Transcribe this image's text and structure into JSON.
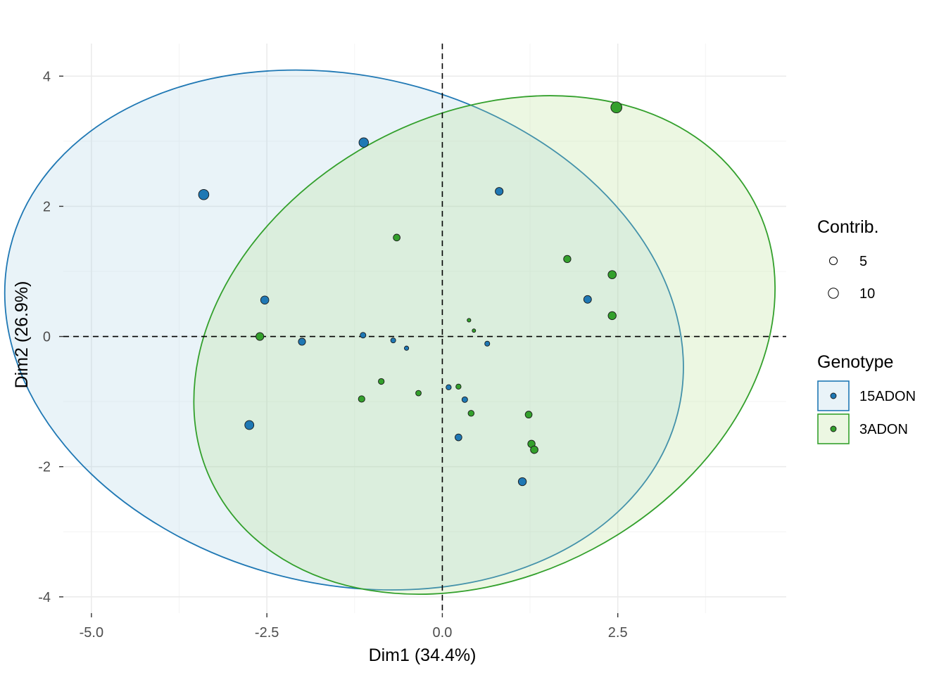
{
  "chart_data": {
    "type": "scatter",
    "xlabel": "Dim1 (34.4%)",
    "ylabel": "Dim2 (26.9%)",
    "xlim": [
      -5.4,
      4.9
    ],
    "ylim": [
      -4.25,
      4.5
    ],
    "xticks": [
      -5.0,
      -2.5,
      0.0,
      2.5
    ],
    "xtick_labels": [
      "-5.0",
      "-2.5",
      "0.0",
      "2.5"
    ],
    "yticks": [
      -4,
      -2,
      0,
      2,
      4
    ],
    "ytick_labels": [
      "-4",
      "-2",
      "0",
      "2",
      "4"
    ],
    "grid": true,
    "reference_lines": {
      "x": 0,
      "y": 0,
      "style": "dashed"
    },
    "legend_position": "right",
    "size_legend": {
      "title": "Contrib.",
      "entries": [
        {
          "label": "5",
          "value": 5
        },
        {
          "label": "10",
          "value": 10
        }
      ]
    },
    "color_legend": {
      "title": "Genotype"
    },
    "series": [
      {
        "name": "15ADON",
        "color": "#1f78b4",
        "fill": "#a6cee3",
        "ellipse": {
          "cx": -1.4,
          "cy": 0.1,
          "rx": 4.9,
          "ry": 3.9,
          "angle_deg": -14
        },
        "points": [
          {
            "x": -3.4,
            "y": 2.18,
            "contrib": 10.5
          },
          {
            "x": -1.12,
            "y": 2.98,
            "contrib": 8.5
          },
          {
            "x": 0.81,
            "y": 2.23,
            "contrib": 5.2
          },
          {
            "x": -2.53,
            "y": 0.56,
            "contrib": 5.8
          },
          {
            "x": -2.0,
            "y": -0.08,
            "contrib": 4.0
          },
          {
            "x": -1.13,
            "y": 0.02,
            "contrib": 2.0
          },
          {
            "x": -0.7,
            "y": -0.06,
            "contrib": 1.3
          },
          {
            "x": -0.51,
            "y": -0.18,
            "contrib": 0.8
          },
          {
            "x": 0.64,
            "y": -0.11,
            "contrib": 1.3
          },
          {
            "x": 2.07,
            "y": 0.57,
            "contrib": 4.9
          },
          {
            "x": -2.75,
            "y": -1.36,
            "contrib": 7.5
          },
          {
            "x": 0.09,
            "y": -0.78,
            "contrib": 1.5
          },
          {
            "x": 0.32,
            "y": -0.97,
            "contrib": 2.0
          },
          {
            "x": 0.23,
            "y": -1.55,
            "contrib": 3.5
          },
          {
            "x": 1.14,
            "y": -2.23,
            "contrib": 5.5
          }
        ]
      },
      {
        "name": "3ADON",
        "color": "#33a02c",
        "fill": "#b2df8a",
        "ellipse": {
          "cx": 0.6,
          "cy": -0.13,
          "rx": 4.35,
          "ry": 3.55,
          "angle_deg": 28
        },
        "points": [
          {
            "x": 2.48,
            "y": 3.52,
            "contrib": 12.5
          },
          {
            "x": -0.65,
            "y": 1.52,
            "contrib": 3.5
          },
          {
            "x": 1.78,
            "y": 1.19,
            "contrib": 4.2
          },
          {
            "x": 2.42,
            "y": 0.95,
            "contrib": 5.8
          },
          {
            "x": 2.42,
            "y": 0.32,
            "contrib": 5.5
          },
          {
            "x": -2.6,
            "y": 0.0,
            "contrib": 5.2
          },
          {
            "x": 0.38,
            "y": 0.25,
            "contrib": 0.4
          },
          {
            "x": 0.45,
            "y": 0.09,
            "contrib": 0.3
          },
          {
            "x": -0.87,
            "y": -0.69,
            "contrib": 2.2
          },
          {
            "x": -0.34,
            "y": -0.87,
            "contrib": 1.8
          },
          {
            "x": -1.15,
            "y": -0.96,
            "contrib": 3.0
          },
          {
            "x": 0.23,
            "y": -0.77,
            "contrib": 1.5
          },
          {
            "x": 0.41,
            "y": -1.18,
            "contrib": 2.4
          },
          {
            "x": 1.23,
            "y": -1.2,
            "contrib": 3.6
          },
          {
            "x": 1.27,
            "y": -1.65,
            "contrib": 4.3
          },
          {
            "x": 1.31,
            "y": -1.74,
            "contrib": 4.6
          }
        ]
      }
    ]
  }
}
